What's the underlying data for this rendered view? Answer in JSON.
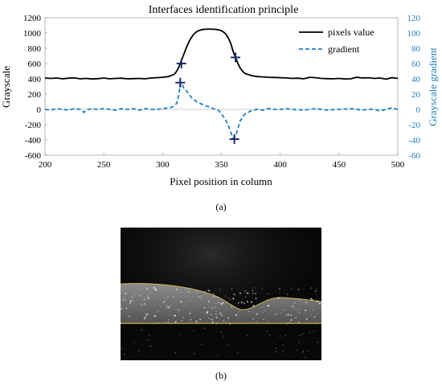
{
  "chart_data": {
    "type": "line",
    "title": "Interfaces identification principle",
    "xlabel": "Pixel position in column",
    "ylabel": "Grayscale",
    "y2label": "Grayscale gradient",
    "xlim": [
      200,
      500
    ],
    "ylim": [
      -600,
      1200
    ],
    "y2lim": [
      -60,
      120
    ],
    "xticks": [
      200,
      250,
      300,
      350,
      400,
      450,
      500
    ],
    "yticks": [
      -600,
      -400,
      -200,
      0,
      200,
      400,
      600,
      800,
      1000,
      1200
    ],
    "y2ticks": [
      -60,
      -40,
      -20,
      0,
      20,
      40,
      60,
      80,
      100,
      120
    ],
    "grid": false,
    "legend_position": "top-right",
    "series": [
      {
        "name": "pixels value",
        "axis": "left",
        "style": "solid",
        "color": "#000000",
        "x": [
          200,
          205,
          210,
          215,
          220,
          225,
          230,
          235,
          240,
          245,
          250,
          255,
          260,
          265,
          270,
          275,
          280,
          285,
          290,
          295,
          300,
          305,
          310,
          312,
          314,
          316,
          318,
          320,
          322,
          324,
          326,
          328,
          330,
          332,
          334,
          336,
          338,
          340,
          342,
          344,
          346,
          348,
          350,
          352,
          354,
          356,
          358,
          360,
          362,
          364,
          366,
          368,
          370,
          375,
          380,
          385,
          390,
          395,
          400,
          405,
          410,
          415,
          420,
          425,
          430,
          435,
          440,
          445,
          450,
          455,
          460,
          465,
          470,
          475,
          480,
          485,
          490,
          495,
          500
        ],
        "values": [
          410,
          405,
          410,
          400,
          408,
          412,
          400,
          405,
          398,
          402,
          410,
          400,
          405,
          408,
          400,
          402,
          405,
          400,
          410,
          415,
          420,
          430,
          460,
          500,
          560,
          640,
          720,
          800,
          870,
          930,
          975,
          1005,
          1025,
          1038,
          1045,
          1048,
          1050,
          1052,
          1050,
          1048,
          1045,
          1040,
          1030,
          1010,
          980,
          930,
          860,
          760,
          680,
          600,
          540,
          500,
          470,
          445,
          430,
          425,
          420,
          418,
          415,
          412,
          405,
          408,
          400,
          420,
          415,
          405,
          402,
          400,
          405,
          398,
          400,
          420,
          410,
          415,
          405,
          410,
          395,
          415,
          405
        ]
      },
      {
        "name": "gradient",
        "axis": "right",
        "style": "dashed",
        "color": "#1f7fbf",
        "x": [
          200,
          205,
          210,
          215,
          220,
          225,
          230,
          233,
          235,
          240,
          245,
          250,
          255,
          260,
          265,
          270,
          275,
          280,
          285,
          290,
          295,
          300,
          305,
          308,
          310,
          312,
          314,
          315,
          316,
          317,
          318,
          320,
          322,
          325,
          328,
          330,
          333,
          336,
          340,
          343,
          346,
          348,
          350,
          352,
          354,
          356,
          358,
          360,
          362,
          364,
          366,
          370,
          375,
          380,
          385,
          390,
          395,
          400,
          405,
          410,
          420,
          430,
          440,
          450,
          460,
          470,
          475,
          480,
          485,
          490,
          495,
          500
        ],
        "values": [
          0,
          -1,
          1,
          0,
          -1,
          1,
          0,
          -4,
          -1,
          1,
          0,
          1,
          0,
          -1,
          1,
          0,
          1,
          -1,
          1,
          0,
          0,
          1,
          2,
          3,
          5,
          8,
          20,
          35,
          34,
          31,
          28,
          25,
          20,
          15,
          11,
          9,
          7,
          5,
          3,
          1,
          0,
          -2,
          -6,
          -10,
          -15,
          -22,
          -30,
          -38,
          -35,
          -25,
          -15,
          -6,
          -2,
          0,
          -1,
          1,
          0,
          0,
          1,
          0,
          -1,
          1,
          -1,
          0,
          1,
          -1,
          0,
          0,
          -2,
          0,
          2,
          0
        ]
      }
    ],
    "markers": [
      {
        "x": 316,
        "y": 600,
        "axis": "left"
      },
      {
        "x": 362,
        "y": 680,
        "axis": "left"
      },
      {
        "x": 315,
        "y": 35,
        "axis": "right"
      },
      {
        "x": 361,
        "y": -39,
        "axis": "right"
      }
    ]
  },
  "captions": {
    "a": "(a)",
    "b": "(b)"
  },
  "colors": {
    "gradient": "#1f7fbf",
    "pixels": "#000000",
    "marker": "#1a2a66"
  }
}
